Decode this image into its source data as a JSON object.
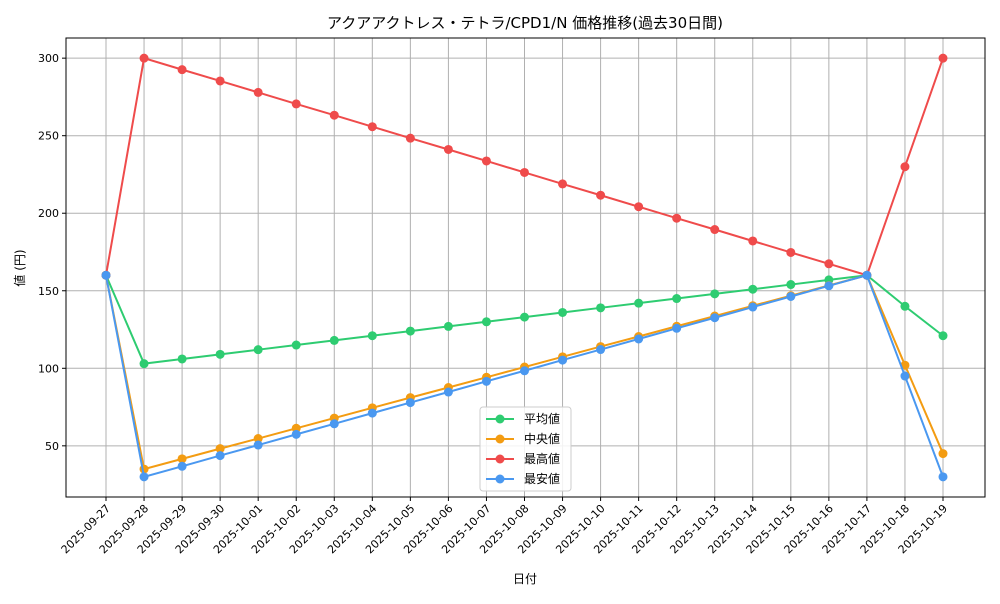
{
  "chart_data": {
    "type": "line",
    "title": "アクアアクトレス・テトラ/CPD1/N 価格推移(過去30日間)",
    "xlabel": "日付",
    "ylabel": "値 (円)",
    "ylim": [
      17,
      313
    ],
    "yticks": [
      50,
      100,
      150,
      200,
      250,
      300
    ],
    "grid": true,
    "legend": "bottom-center",
    "categories": [
      "2025-09-27",
      "2025-09-28",
      "2025-09-29",
      "2025-09-30",
      "2025-10-01",
      "2025-10-02",
      "2025-10-03",
      "2025-10-04",
      "2025-10-05",
      "2025-10-06",
      "2025-10-07",
      "2025-10-08",
      "2025-10-09",
      "2025-10-10",
      "2025-10-11",
      "2025-10-12",
      "2025-10-13",
      "2025-10-14",
      "2025-10-15",
      "2025-10-16",
      "2025-10-17",
      "2025-10-18",
      "2025-10-19"
    ],
    "series": [
      {
        "name": "平均値",
        "color": "#2ecc71",
        "values": [
          160,
          103,
          106,
          109,
          112,
          115,
          118,
          121,
          124,
          127,
          130,
          133,
          136,
          139,
          142,
          145,
          148,
          151,
          154,
          157,
          160,
          140,
          121
        ]
      },
      {
        "name": "中央値",
        "color": "#f39c12",
        "values": [
          160,
          35,
          41.6,
          48.2,
          54.7,
          61.3,
          67.9,
          74.5,
          81.1,
          87.6,
          94.2,
          100.8,
          107.4,
          114,
          120.5,
          127.1,
          133.7,
          140.3,
          146.8,
          153.4,
          160,
          102,
          45
        ]
      },
      {
        "name": "最高値",
        "color": "#ef4b4b",
        "values": [
          160,
          300,
          292.6,
          285.3,
          277.9,
          270.5,
          263.2,
          255.8,
          248.4,
          241.1,
          233.7,
          226.3,
          218.9,
          211.6,
          204.2,
          196.8,
          189.5,
          182.1,
          174.7,
          167.4,
          160,
          230,
          300
        ]
      },
      {
        "name": "最安値",
        "color": "#4a98f0",
        "values": [
          160,
          30,
          36.8,
          43.7,
          50.5,
          57.4,
          64.2,
          71.1,
          77.9,
          84.7,
          91.6,
          98.4,
          105.3,
          112.1,
          118.9,
          125.8,
          132.6,
          139.5,
          146.3,
          153.2,
          160,
          95,
          30
        ]
      }
    ]
  }
}
